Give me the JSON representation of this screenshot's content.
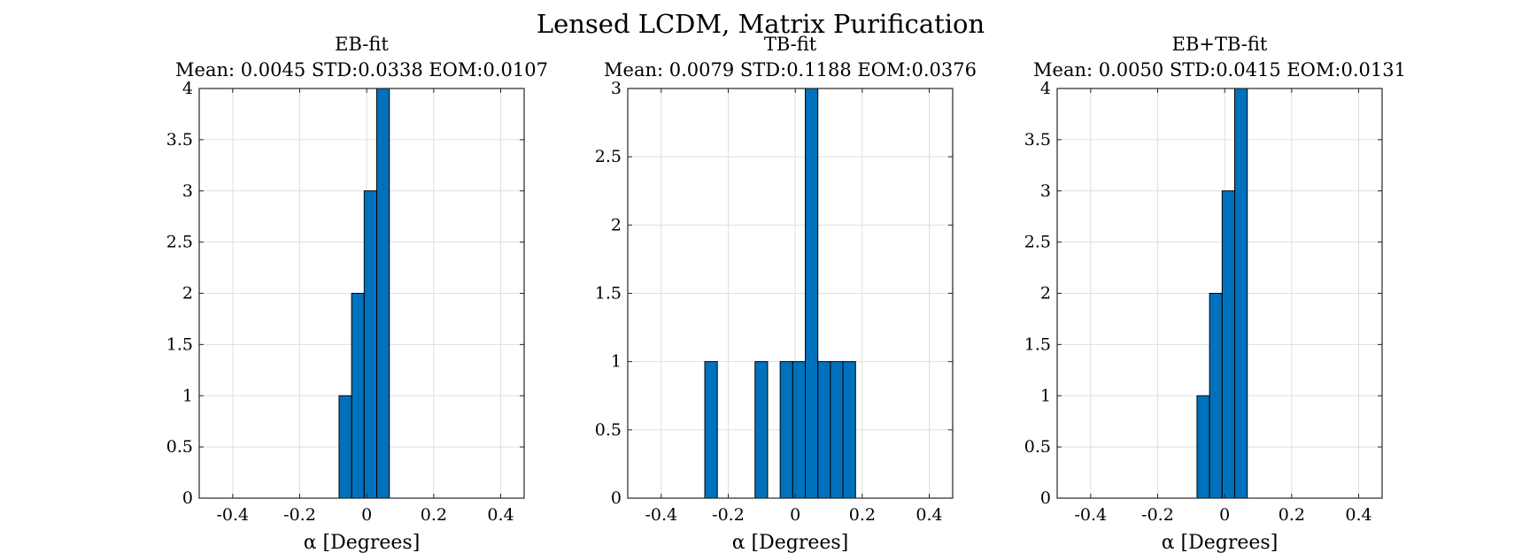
{
  "figure": {
    "title": "Lensed LCDM, Matrix Purification"
  },
  "colors": {
    "bar_fill": "#0072BD",
    "bar_edge": "#000000",
    "grid": "#DFDFDF",
    "axes": "#262626"
  },
  "chart_data": [
    {
      "type": "bar",
      "title": "EB-fit",
      "subtitle": "Mean: 0.0045 STD:0.0338 EOM:0.0107",
      "xlabel": "α [Degrees]",
      "ylabel": "",
      "xlim": [
        -0.5,
        0.47
      ],
      "ylim": [
        0,
        4
      ],
      "bin_width": 0.0375,
      "xticks": [
        -0.4,
        -0.2,
        0,
        0.2,
        0.4
      ],
      "xtick_labels": [
        "-0.4",
        "-0.2",
        "0",
        "0.2",
        "0.4"
      ],
      "yticks": [
        0,
        0.5,
        1,
        1.5,
        2,
        2.5,
        3,
        3.5,
        4
      ],
      "ytick_labels": [
        "0",
        "0.5",
        "1",
        "1.5",
        "2",
        "2.5",
        "3",
        "3.5",
        "4"
      ],
      "grid": true,
      "bins": [
        {
          "x0": -0.0825,
          "x1": -0.045,
          "count": 1
        },
        {
          "x0": -0.045,
          "x1": -0.0075,
          "count": 2
        },
        {
          "x0": -0.0075,
          "x1": 0.03,
          "count": 3
        },
        {
          "x0": 0.03,
          "x1": 0.0675,
          "count": 4
        }
      ]
    },
    {
      "type": "bar",
      "title": "TB-fit",
      "subtitle": "Mean: 0.0079 STD:0.1188 EOM:0.0376",
      "xlabel": "α [Degrees]",
      "ylabel": "",
      "xlim": [
        -0.5,
        0.47
      ],
      "ylim": [
        0,
        3
      ],
      "bin_width": 0.0375,
      "xticks": [
        -0.4,
        -0.2,
        0,
        0.2,
        0.4
      ],
      "xtick_labels": [
        "-0.4",
        "-0.2",
        "0",
        "0.2",
        "0.4"
      ],
      "yticks": [
        0,
        0.5,
        1,
        1.5,
        2,
        2.5,
        3
      ],
      "ytick_labels": [
        "0",
        "0.5",
        "1",
        "1.5",
        "2",
        "2.5",
        "3"
      ],
      "grid": true,
      "bins": [
        {
          "x0": -0.27,
          "x1": -0.2325,
          "count": 1
        },
        {
          "x0": -0.12,
          "x1": -0.0825,
          "count": 1
        },
        {
          "x0": -0.045,
          "x1": -0.0075,
          "count": 1
        },
        {
          "x0": -0.0075,
          "x1": 0.03,
          "count": 1
        },
        {
          "x0": 0.03,
          "x1": 0.0675,
          "count": 3
        },
        {
          "x0": 0.0675,
          "x1": 0.105,
          "count": 1
        },
        {
          "x0": 0.105,
          "x1": 0.1425,
          "count": 1
        },
        {
          "x0": 0.1425,
          "x1": 0.18,
          "count": 1
        }
      ]
    },
    {
      "type": "bar",
      "title": "EB+TB-fit",
      "subtitle": "Mean: 0.0050 STD:0.0415 EOM:0.0131",
      "xlabel": "α [Degrees]",
      "ylabel": "",
      "xlim": [
        -0.5,
        0.47
      ],
      "ylim": [
        0,
        4
      ],
      "bin_width": 0.0375,
      "xticks": [
        -0.4,
        -0.2,
        0,
        0.2,
        0.4
      ],
      "xtick_labels": [
        "-0.4",
        "-0.2",
        "0",
        "0.2",
        "0.4"
      ],
      "yticks": [
        0,
        0.5,
        1,
        1.5,
        2,
        2.5,
        3,
        3.5,
        4
      ],
      "ytick_labels": [
        "0",
        "0.5",
        "1",
        "1.5",
        "2",
        "2.5",
        "3",
        "3.5",
        "4"
      ],
      "grid": true,
      "bins": [
        {
          "x0": -0.0825,
          "x1": -0.045,
          "count": 1
        },
        {
          "x0": -0.045,
          "x1": -0.0075,
          "count": 2
        },
        {
          "x0": -0.0075,
          "x1": 0.03,
          "count": 3
        },
        {
          "x0": 0.03,
          "x1": 0.0675,
          "count": 4
        }
      ]
    }
  ]
}
